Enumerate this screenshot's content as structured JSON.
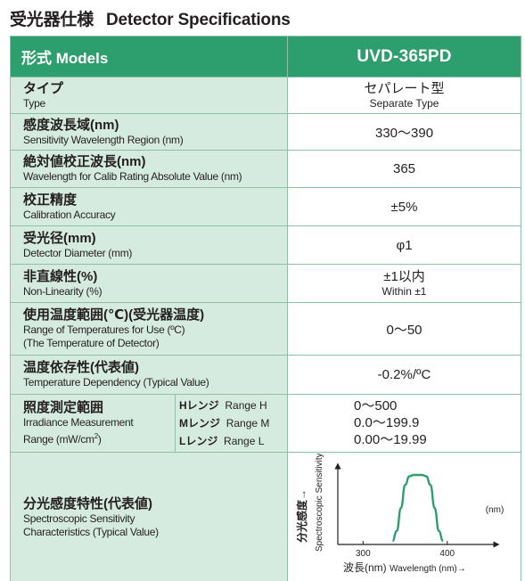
{
  "title": {
    "ja": "受光器仕様",
    "en": "Detector Specifications"
  },
  "header": {
    "label": "形式 Models",
    "model": "UVD-365PD"
  },
  "rows": [
    {
      "ja": "タイプ",
      "en": "Type",
      "value": "セパレート型",
      "value_sub": "Separate Type"
    },
    {
      "ja": "感度波長域(nm)",
      "en": "Sensitivity Wavelength Region (nm)",
      "value": "330〜390"
    },
    {
      "ja": "絶対値校正波長(nm)",
      "en": "Wavelength for Calib Rating Absolute Value (nm)",
      "value": "365"
    },
    {
      "ja": "校正精度",
      "en": "Calibration Accuracy",
      "value": "±5%"
    },
    {
      "ja": "受光径(mm)",
      "en": "Detector Diameter (mm)",
      "value": "φ1"
    },
    {
      "ja": "非直線性(%)",
      "en": "Non-Linearity (%)",
      "value": "±1以内",
      "value_sub": "Within ±1"
    },
    {
      "ja": "使用温度範囲(℃)(受光器温度)",
      "en": "Range of Temperatures for Use (ºC)",
      "en2": " (The Temperature of Detector)",
      "value": "0〜50"
    },
    {
      "ja": "温度依存性(代表値)",
      "en": "Temperature Dependency (Typical Value)",
      "value": "-0.2%/ºC"
    }
  ],
  "irradiance": {
    "ja": "照度測定範囲",
    "en": "Irradiance Measurement",
    "en2": "Range (mW/cm",
    "en2_sup": "2",
    "en2_end": ")",
    "ranges": [
      {
        "key": "H",
        "ja": "レンジ",
        "en": "Range H",
        "value": "0〜500"
      },
      {
        "key": "M",
        "ja": "レンジ",
        "en": "Range M",
        "value": "0.0〜199.9"
      },
      {
        "key": "L",
        "ja": "レンジ",
        "en": "Range L",
        "value": "0.00〜19.99"
      }
    ]
  },
  "spectral": {
    "ja": "分光感度特性(代表値)",
    "en": "Spectroscopic Sensitivity",
    "en2": "Characteristics (Typical Value)"
  },
  "chart_data": {
    "type": "line",
    "ylabel_ja": "分光感度→",
    "ylabel_en": "Spectroscopic Sensitivity",
    "xlabel_ja": "波長(nm)",
    "xlabel_en": "Wavelength (nm)→",
    "unit_label": "(nm)",
    "xticks": [
      300,
      400
    ],
    "xlim": [
      270,
      450
    ],
    "ylim": [
      0,
      1
    ],
    "line_color": "#2d9e6e",
    "series": [
      {
        "x": [
          335,
          340,
          345,
          350,
          355,
          360,
          365,
          370,
          375,
          380,
          385,
          390,
          395
        ],
        "values": [
          0.0,
          0.15,
          0.5,
          0.85,
          0.98,
          1.0,
          1.0,
          1.0,
          0.98,
          0.85,
          0.5,
          0.15,
          0.0
        ]
      }
    ]
  }
}
